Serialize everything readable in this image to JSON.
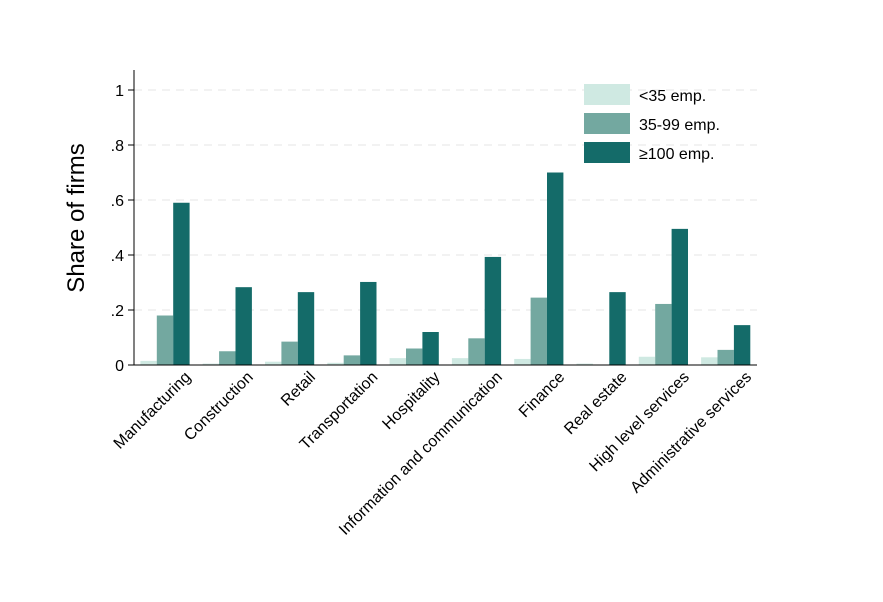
{
  "chart_data": {
    "type": "bar",
    "ylabel": "Share of firms",
    "xlabel": "",
    "ylim": [
      0,
      1.05
    ],
    "yticks": [
      0,
      0.2,
      0.4,
      0.6,
      0.8,
      1
    ],
    "ytick_labels": [
      "0",
      ".2",
      ".4",
      ".6",
      ".8",
      "1"
    ],
    "grid": true,
    "legend_position": "top-right",
    "categories": [
      "Manufacturing",
      "Construction",
      "Retail",
      "Transportation",
      "Hospitality",
      "Information and communication",
      "Finance",
      "Real estate",
      "High level services",
      "Administrative services"
    ],
    "series": [
      {
        "name": "<35 emp.",
        "color": "#cfe9e2",
        "values": [
          0.015,
          0.005,
          0.012,
          0.008,
          0.025,
          0.025,
          0.022,
          0.005,
          0.03,
          0.028
        ]
      },
      {
        "name": "35-99 emp.",
        "color": "#73a8a0",
        "values": [
          0.18,
          0.05,
          0.085,
          0.035,
          0.06,
          0.097,
          0.245,
          0.0,
          0.222,
          0.055
        ]
      },
      {
        "name": "≥100 emp.",
        "color": "#146b69",
        "values": [
          0.59,
          0.283,
          0.265,
          0.302,
          0.12,
          0.393,
          0.7,
          0.265,
          0.495,
          0.145
        ]
      }
    ]
  }
}
